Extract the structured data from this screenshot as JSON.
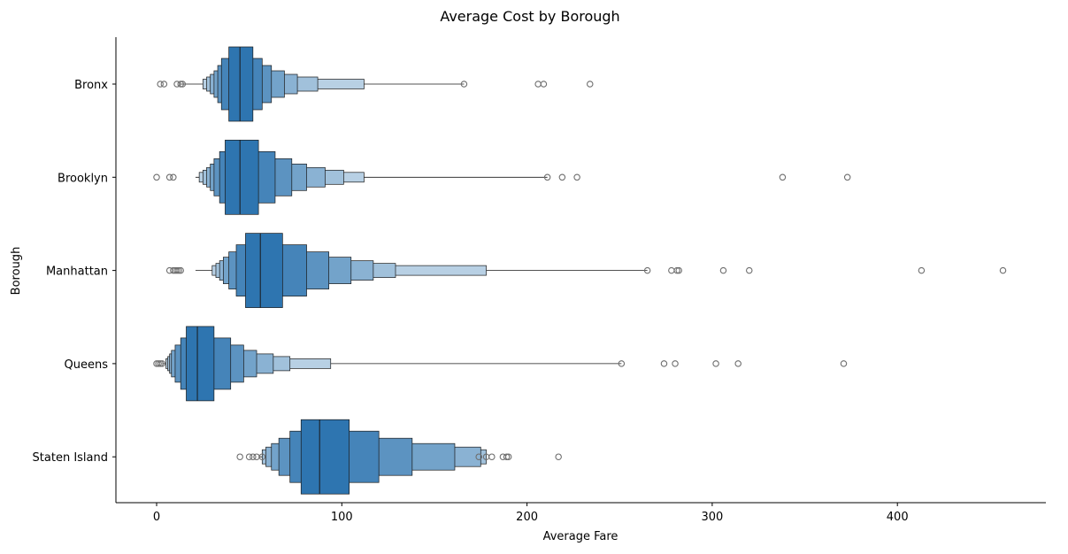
{
  "chart_data": {
    "type": "boxen",
    "orientation": "horizontal",
    "title": "Average Cost by Borough",
    "xlabel": "Average Fare",
    "ylabel": "Borough",
    "xlim": [
      -22,
      480
    ],
    "xticks": [
      0,
      100,
      200,
      300,
      400
    ],
    "grid": false,
    "legend": "none",
    "colors": {
      "base": "#2e75b0",
      "box_edge": "#1a1a1a",
      "median": "#1a1a1a",
      "outlier_edge": "#6e6e6e"
    },
    "categories": [
      "Bronx",
      "Brooklyn",
      "Manhattan",
      "Queens",
      "Staten Island"
    ],
    "series": [
      {
        "category": "Bronx",
        "median": 45,
        "boxes": [
          [
            39,
            52
          ],
          [
            35,
            57
          ],
          [
            33,
            62
          ],
          [
            31,
            69
          ],
          [
            29,
            76
          ],
          [
            27,
            87
          ],
          [
            25,
            112
          ]
        ],
        "whisker": [
          12,
          166
        ],
        "outliers": [
          2,
          4,
          11,
          13,
          14,
          166,
          206,
          209,
          234
        ]
      },
      {
        "category": "Brooklyn",
        "median": 45,
        "boxes": [
          [
            37,
            55
          ],
          [
            34,
            64
          ],
          [
            31,
            73
          ],
          [
            29,
            81
          ],
          [
            27,
            91
          ],
          [
            25,
            101
          ],
          [
            23,
            112
          ]
        ],
        "whisker": [
          21,
          211
        ],
        "outliers": [
          0,
          7,
          9,
          211,
          219,
          227,
          338,
          373
        ]
      },
      {
        "category": "Manhattan",
        "median": 56,
        "boxes": [
          [
            48,
            68
          ],
          [
            43,
            81
          ],
          [
            39,
            93
          ],
          [
            36,
            105
          ],
          [
            34,
            117
          ],
          [
            32,
            129
          ],
          [
            30,
            178
          ]
        ],
        "whisker": [
          21,
          265
        ],
        "outliers": [
          7,
          9,
          10,
          11,
          12,
          13,
          265,
          278,
          281,
          282,
          306,
          320,
          413,
          457
        ]
      },
      {
        "category": "Queens",
        "median": 22,
        "boxes": [
          [
            16,
            31
          ],
          [
            13,
            40
          ],
          [
            10,
            47
          ],
          [
            8,
            54
          ],
          [
            7,
            63
          ],
          [
            6,
            72
          ],
          [
            5,
            94
          ]
        ],
        "whisker": [
          3,
          251
        ],
        "outliers": [
          0,
          1,
          2,
          3,
          251,
          274,
          280,
          302,
          314,
          371
        ]
      },
      {
        "category": "Staten Island",
        "median": 88,
        "boxes": [
          [
            78,
            104
          ],
          [
            72,
            120
          ],
          [
            66,
            138
          ],
          [
            62,
            161
          ],
          [
            59,
            175
          ],
          [
            57,
            178
          ]
        ],
        "whisker": [
          55,
          178
        ],
        "outliers": [
          45,
          50,
          52,
          54,
          57,
          174,
          178,
          181,
          187,
          189,
          190,
          217
        ]
      }
    ]
  }
}
